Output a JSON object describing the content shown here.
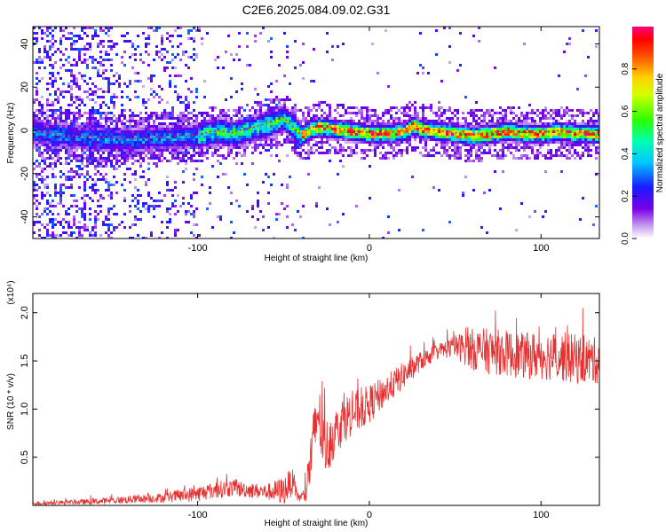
{
  "title": "C2E6.2025.084.09.02.G31",
  "chart_data": [
    {
      "type": "heatmap",
      "title": "C2E6.2025.084.09.02.G31",
      "xlabel": "Height of straight line (km)",
      "ylabel": "Frequency (Hz)",
      "xlim": [
        -196,
        134
      ],
      "ylim": [
        -50,
        48
      ],
      "xticks": [
        -100,
        0,
        100
      ],
      "yticks": [
        -40,
        -20,
        0,
        20,
        40
      ],
      "xtick_labels": [
        "-100",
        "0",
        "100"
      ],
      "ytick_labels": [
        "-40",
        "-20",
        "0",
        "20",
        "40"
      ],
      "colorbar": {
        "label": "Normalized spectral amplitude",
        "range": [
          0,
          1
        ],
        "ticks": [
          0.0,
          0.2,
          0.4,
          0.6,
          0.8
        ],
        "tick_labels": [
          "0.0",
          "0.2",
          "0.4",
          "0.6",
          "0.8"
        ],
        "colormap": "rainbow (white-violet-blue-cyan-green-yellow-red-magenta)"
      },
      "ridge": {
        "x": [
          -196,
          -180,
          -160,
          -140,
          -120,
          -100,
          -90,
          -80,
          -70,
          -60,
          -50,
          -45,
          -40,
          -35,
          -30,
          -20,
          -10,
          0,
          10,
          20,
          25,
          30,
          40,
          50,
          60,
          70,
          80,
          90,
          100,
          110,
          120,
          134
        ],
        "freq": [
          0,
          -2,
          -3,
          -4,
          -3,
          -2,
          0,
          -1,
          1,
          3,
          6,
          2,
          -2,
          1,
          2,
          1,
          0,
          -1,
          -1,
          0,
          3,
          1,
          0,
          -1,
          -2,
          -1,
          0,
          -1,
          -1,
          0,
          -1,
          -1
        ]
      }
    },
    {
      "type": "line",
      "xlabel": "Height of straight line (km)",
      "ylabel": "SNR (10 * v/v)",
      "y_scale_label": "(x10⁴)",
      "xlim": [
        -196,
        134
      ],
      "ylim": [
        0,
        2.2
      ],
      "xticks": [
        -100,
        0,
        100
      ],
      "yticks": [
        0.5,
        1.0,
        1.5,
        2.0
      ],
      "xtick_labels": [
        "-100",
        "0",
        "100"
      ],
      "ytick_labels": [
        "0.5",
        "1.0",
        "1.5",
        "2.0"
      ],
      "series": [
        {
          "name": "SNR",
          "color": "#e83030",
          "x": [
            -196,
            -180,
            -160,
            -140,
            -120,
            -110,
            -100,
            -90,
            -80,
            -70,
            -60,
            -50,
            -45,
            -42,
            -40,
            -37,
            -35,
            -32,
            -30,
            -27,
            -25,
            -20,
            -15,
            -10,
            -5,
            0,
            10,
            20,
            30,
            40,
            50,
            60,
            70,
            80,
            90,
            100,
            110,
            120,
            134
          ],
          "y": [
            0.02,
            0.03,
            0.04,
            0.06,
            0.08,
            0.1,
            0.12,
            0.16,
            0.18,
            0.16,
            0.14,
            0.15,
            0.25,
            0.1,
            0.08,
            0.12,
            0.4,
            0.7,
            1.0,
            0.65,
            0.6,
            0.75,
            0.9,
            0.95,
            1.0,
            1.05,
            1.2,
            1.35,
            1.5,
            1.6,
            1.65,
            1.62,
            1.6,
            1.58,
            1.55,
            1.56,
            1.55,
            1.52,
            1.5
          ],
          "noise": [
            0.02,
            0.02,
            0.03,
            0.04,
            0.05,
            0.07,
            0.08,
            0.09,
            0.09,
            0.08,
            0.08,
            0.15,
            0.15,
            0.06,
            0.05,
            0.1,
            0.3,
            0.35,
            0.35,
            0.3,
            0.3,
            0.25,
            0.25,
            0.22,
            0.22,
            0.2,
            0.16,
            0.14,
            0.1,
            0.08,
            0.12,
            0.22,
            0.24,
            0.24,
            0.24,
            0.26,
            0.26,
            0.26,
            0.24
          ]
        }
      ]
    }
  ]
}
